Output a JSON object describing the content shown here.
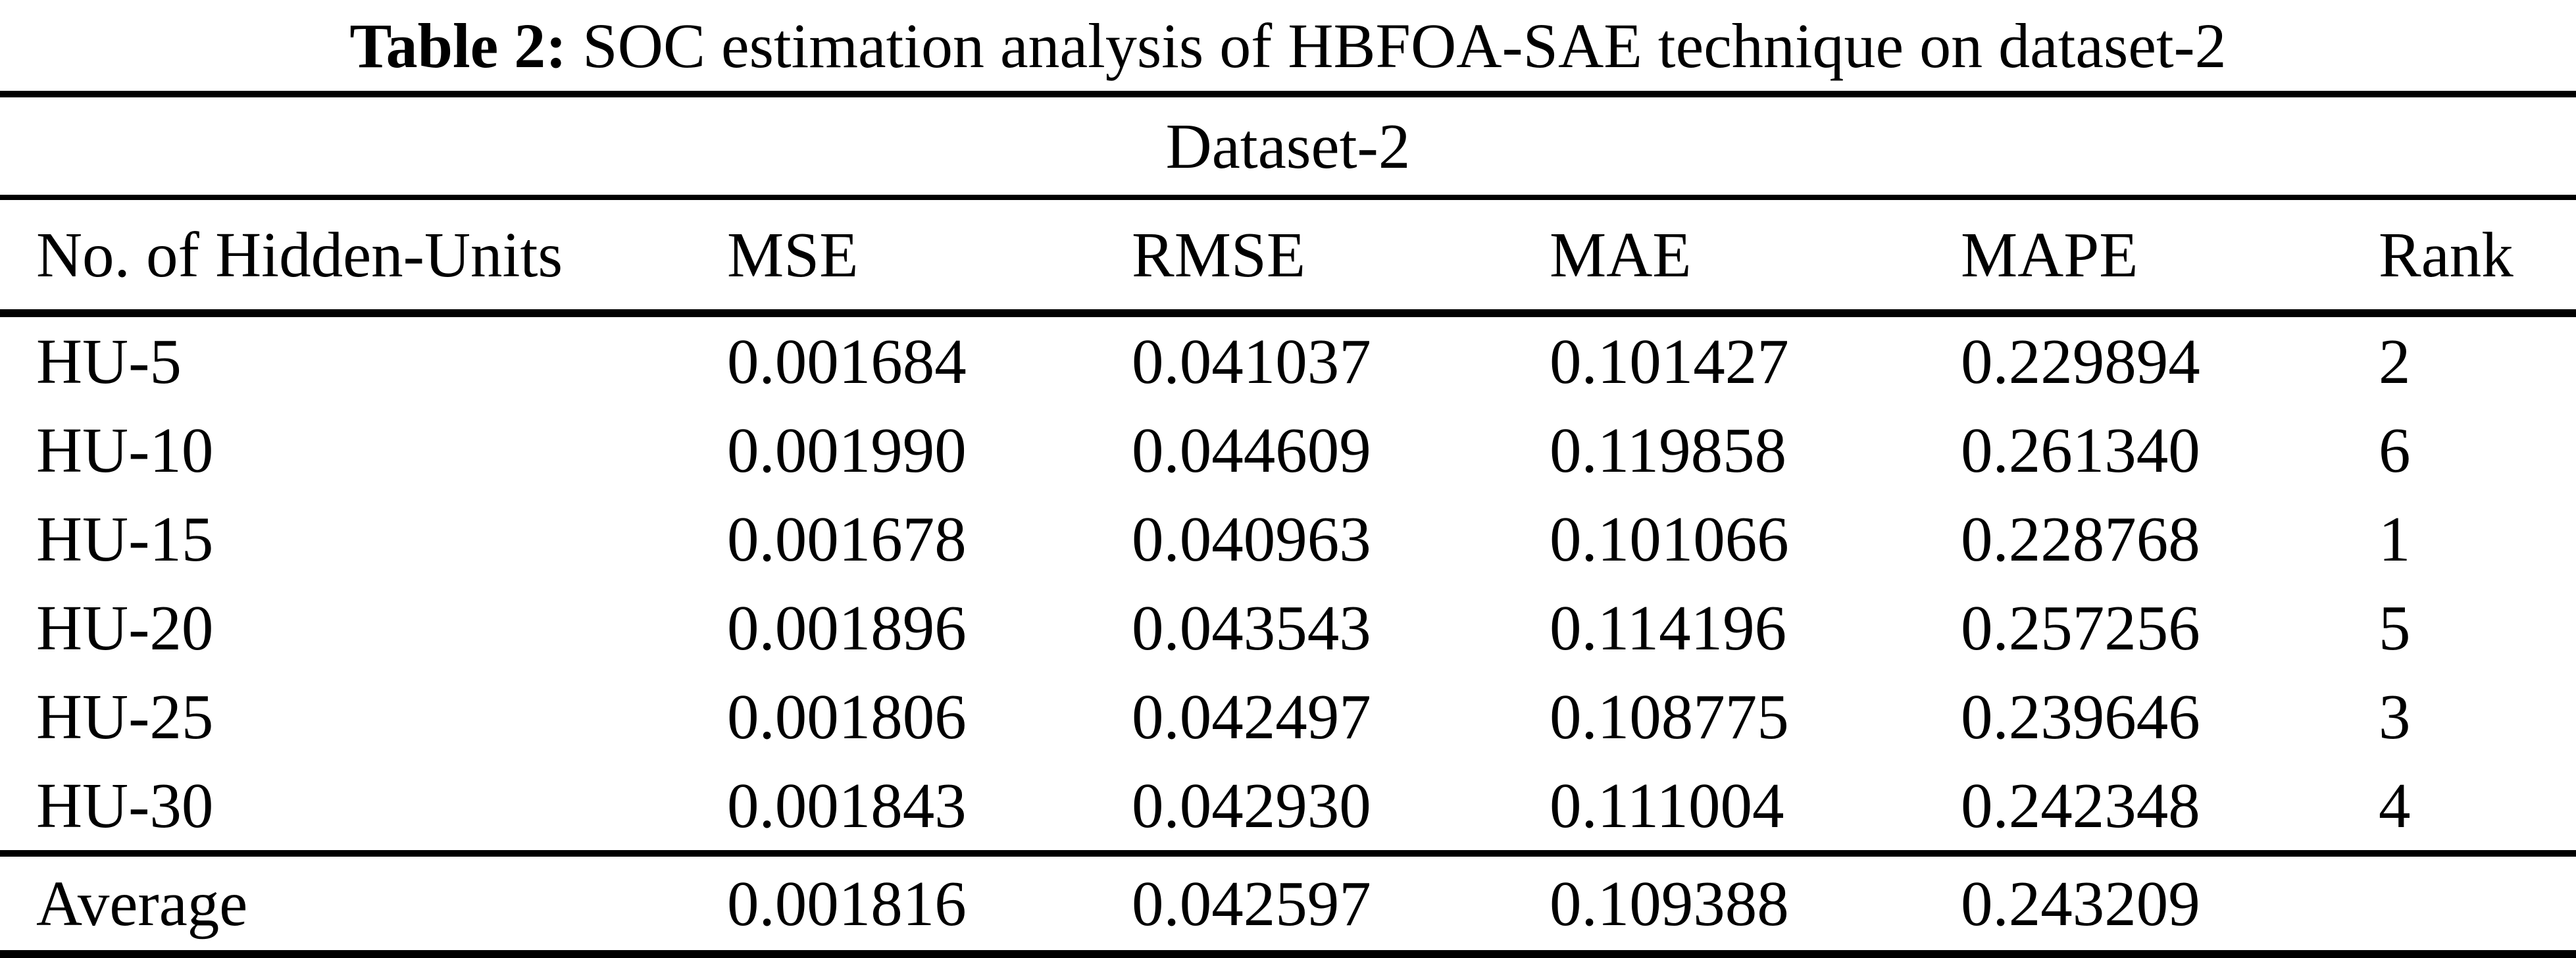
{
  "table": {
    "caption": {
      "label": "Table 2:",
      "text": " SOC estimation analysis of HBFOA-SAE technique on dataset-2"
    },
    "group_header": "Dataset-2",
    "columns": [
      "No. of Hidden-Units",
      "MSE",
      "RMSE",
      "MAE",
      "MAPE",
      "Rank"
    ],
    "rows": [
      [
        "HU-5",
        "0.001684",
        "0.041037",
        "0.101427",
        "0.229894",
        "2"
      ],
      [
        "HU-10",
        "0.001990",
        "0.044609",
        "0.119858",
        "0.261340",
        "6"
      ],
      [
        "HU-15",
        "0.001678",
        "0.040963",
        "0.101066",
        "0.228768",
        "1"
      ],
      [
        "HU-20",
        "0.001896",
        "0.043543",
        "0.114196",
        "0.257256",
        "5"
      ],
      [
        "HU-25",
        "0.001806",
        "0.042497",
        "0.108775",
        "0.239646",
        "3"
      ],
      [
        "HU-30",
        "0.001843",
        "0.042930",
        "0.111004",
        "0.242348",
        "4"
      ]
    ],
    "footer": [
      "Average",
      "0.001816",
      "0.042597",
      "0.109388",
      "0.243209",
      ""
    ]
  },
  "colors": {
    "text": "#000000",
    "background": "#ffffff",
    "rule": "#000000"
  },
  "chart_data": {
    "type": "table",
    "title": "Table 2: SOC estimation analysis of HBFOA-SAE technique on dataset-2",
    "group_header": "Dataset-2",
    "columns": [
      "No. of Hidden-Units",
      "MSE",
      "RMSE",
      "MAE",
      "MAPE",
      "Rank"
    ],
    "rows": [
      {
        "hidden_units": "HU-5",
        "mse": 0.001684,
        "rmse": 0.041037,
        "mae": 0.101427,
        "mape": 0.229894,
        "rank": 2
      },
      {
        "hidden_units": "HU-10",
        "mse": 0.00199,
        "rmse": 0.044609,
        "mae": 0.119858,
        "mape": 0.26134,
        "rank": 6
      },
      {
        "hidden_units": "HU-15",
        "mse": 0.001678,
        "rmse": 0.040963,
        "mae": 0.101066,
        "mape": 0.228768,
        "rank": 1
      },
      {
        "hidden_units": "HU-20",
        "mse": 0.001896,
        "rmse": 0.043543,
        "mae": 0.114196,
        "mape": 0.257256,
        "rank": 5
      },
      {
        "hidden_units": "HU-25",
        "mse": 0.001806,
        "rmse": 0.042497,
        "mae": 0.108775,
        "mape": 0.239646,
        "rank": 3
      },
      {
        "hidden_units": "HU-30",
        "mse": 0.001843,
        "rmse": 0.04293,
        "mae": 0.111004,
        "mape": 0.242348,
        "rank": 4
      }
    ],
    "average": {
      "hidden_units": "Average",
      "mse": 0.001816,
      "rmse": 0.042597,
      "mae": 0.109388,
      "mape": 0.243209
    }
  }
}
